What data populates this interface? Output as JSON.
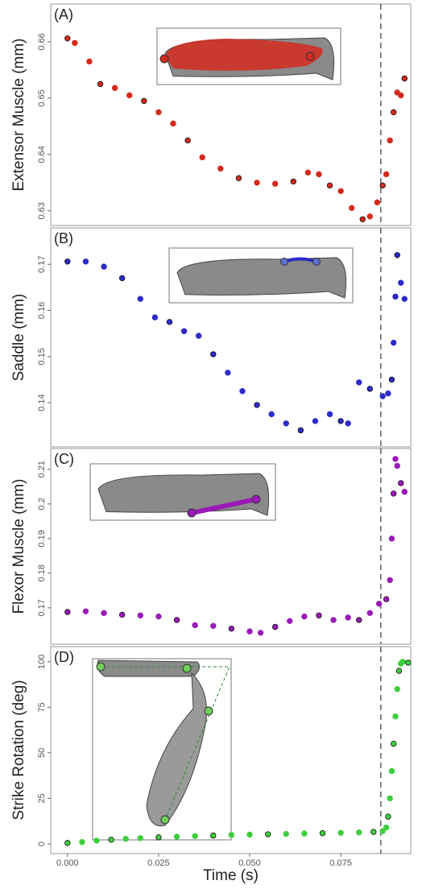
{
  "chart_data": [
    {
      "type": "scatter",
      "panel_label": "(A)",
      "ylabel": "Extensor Muscle (mm)",
      "color": "#d42a1e",
      "x": [
        0,
        0.002,
        0.006,
        0.009,
        0.013,
        0.017,
        0.021,
        0.025,
        0.029,
        0.033,
        0.037,
        0.042,
        0.047,
        0.052,
        0.057,
        0.062,
        0.066,
        0.069,
        0.072,
        0.075,
        0.078,
        0.081,
        0.083,
        0.085,
        0.0865,
        0.0875,
        0.0885,
        0.0895,
        0.0905,
        0.0915,
        0.0925
      ],
      "values": [
        0.6606,
        0.6598,
        0.6565,
        0.6525,
        0.6518,
        0.6505,
        0.6495,
        0.6475,
        0.6455,
        0.6425,
        0.6395,
        0.6375,
        0.6358,
        0.635,
        0.6348,
        0.6352,
        0.6368,
        0.6365,
        0.6345,
        0.6335,
        0.6305,
        0.6285,
        0.629,
        0.6315,
        0.6345,
        0.6365,
        0.6425,
        0.6475,
        0.651,
        0.6505,
        0.6535
      ],
      "xlim": [
        -0.0046,
        0.0942
      ],
      "ylim": [
        0.6274,
        0.6667
      ],
      "yticks": [
        0.63,
        0.64,
        0.65,
        0.66
      ],
      "vline": 0.086
    },
    {
      "type": "scatter",
      "panel_label": "(B)",
      "ylabel": "Saddle (mm)",
      "color": "#2b2bc8",
      "x": [
        0,
        0.005,
        0.01,
        0.015,
        0.02,
        0.024,
        0.028,
        0.032,
        0.036,
        0.04,
        0.044,
        0.048,
        0.052,
        0.056,
        0.06,
        0.064,
        0.068,
        0.072,
        0.075,
        0.077,
        0.08,
        0.083,
        0.0865,
        0.088,
        0.089,
        0.0895,
        0.09,
        0.0905,
        0.0915,
        0.0925
      ],
      "values": [
        0.1706,
        0.1706,
        0.1695,
        0.167,
        0.1625,
        0.1585,
        0.1575,
        0.1555,
        0.1545,
        0.1505,
        0.1465,
        0.1425,
        0.1395,
        0.1375,
        0.1355,
        0.134,
        0.136,
        0.1375,
        0.136,
        0.1355,
        0.1444,
        0.143,
        0.1414,
        0.142,
        0.145,
        0.153,
        0.163,
        0.172,
        0.166,
        0.1625
      ],
      "xlim": [
        -0.0046,
        0.0942
      ],
      "ylim": [
        0.1304,
        0.1779
      ],
      "yticks": [
        0.14,
        0.15,
        0.16,
        0.17
      ],
      "vline": 0.086
    },
    {
      "type": "scatter",
      "panel_label": "(C)",
      "ylabel": "Flexor Muscle (mm)",
      "color": "#9a1ab8",
      "x": [
        0,
        0.005,
        0.01,
        0.015,
        0.02,
        0.025,
        0.03,
        0.035,
        0.04,
        0.045,
        0.05,
        0.053,
        0.057,
        0.061,
        0.065,
        0.069,
        0.073,
        0.077,
        0.08,
        0.083,
        0.0855,
        0.0875,
        0.0885,
        0.089,
        0.0895,
        0.09,
        0.0905,
        0.0915,
        0.0925
      ],
      "values": [
        0.1688,
        0.169,
        0.1685,
        0.168,
        0.1678,
        0.1675,
        0.1665,
        0.165,
        0.1648,
        0.164,
        0.1632,
        0.1628,
        0.1645,
        0.1662,
        0.1675,
        0.1678,
        0.1665,
        0.1672,
        0.1665,
        0.1685,
        0.1712,
        0.1725,
        0.178,
        0.19,
        0.203,
        0.213,
        0.211,
        0.206,
        0.2035
      ],
      "xlim": [
        -0.0046,
        0.0942
      ],
      "ylim": [
        0.1595,
        0.216
      ],
      "yticks": [
        0.17,
        0.18,
        0.19,
        0.2,
        0.21
      ],
      "vline": 0.086
    },
    {
      "type": "scatter",
      "panel_label": "(D)",
      "ylabel": "Strike Rotation (deg)",
      "color": "#3ccf3c",
      "x": [
        0,
        0.004,
        0.008,
        0.012,
        0.016,
        0.02,
        0.025,
        0.03,
        0.035,
        0.04,
        0.045,
        0.05,
        0.055,
        0.06,
        0.065,
        0.07,
        0.075,
        0.08,
        0.084,
        0.0865,
        0.0875,
        0.088,
        0.0885,
        0.089,
        0.0895,
        0.09,
        0.0905,
        0.091,
        0.0915,
        0.092,
        0.0935
      ],
      "values": [
        0.5,
        1,
        1.8,
        2.3,
        2.8,
        3.2,
        3.6,
        4,
        4.3,
        4.6,
        4.9,
        5.1,
        5.3,
        5.5,
        5.7,
        5.9,
        6.1,
        6.3,
        6.6,
        7,
        9,
        15,
        25,
        40,
        55,
        70,
        85,
        95,
        99,
        100,
        99.5
      ],
      "xlim": [
        -0.0046,
        0.0942
      ],
      "ylim": [
        -5.3,
        108.3
      ],
      "yticks": [
        0,
        25,
        50,
        75,
        100
      ],
      "vline": 0.086,
      "xticks": [
        {
          "value": 0,
          "label": "0.000"
        },
        0.025,
        {
          "value": 0.05,
          "label": "0.050"
        },
        0.075
      ],
      "xlabel": "Time (s)"
    }
  ]
}
